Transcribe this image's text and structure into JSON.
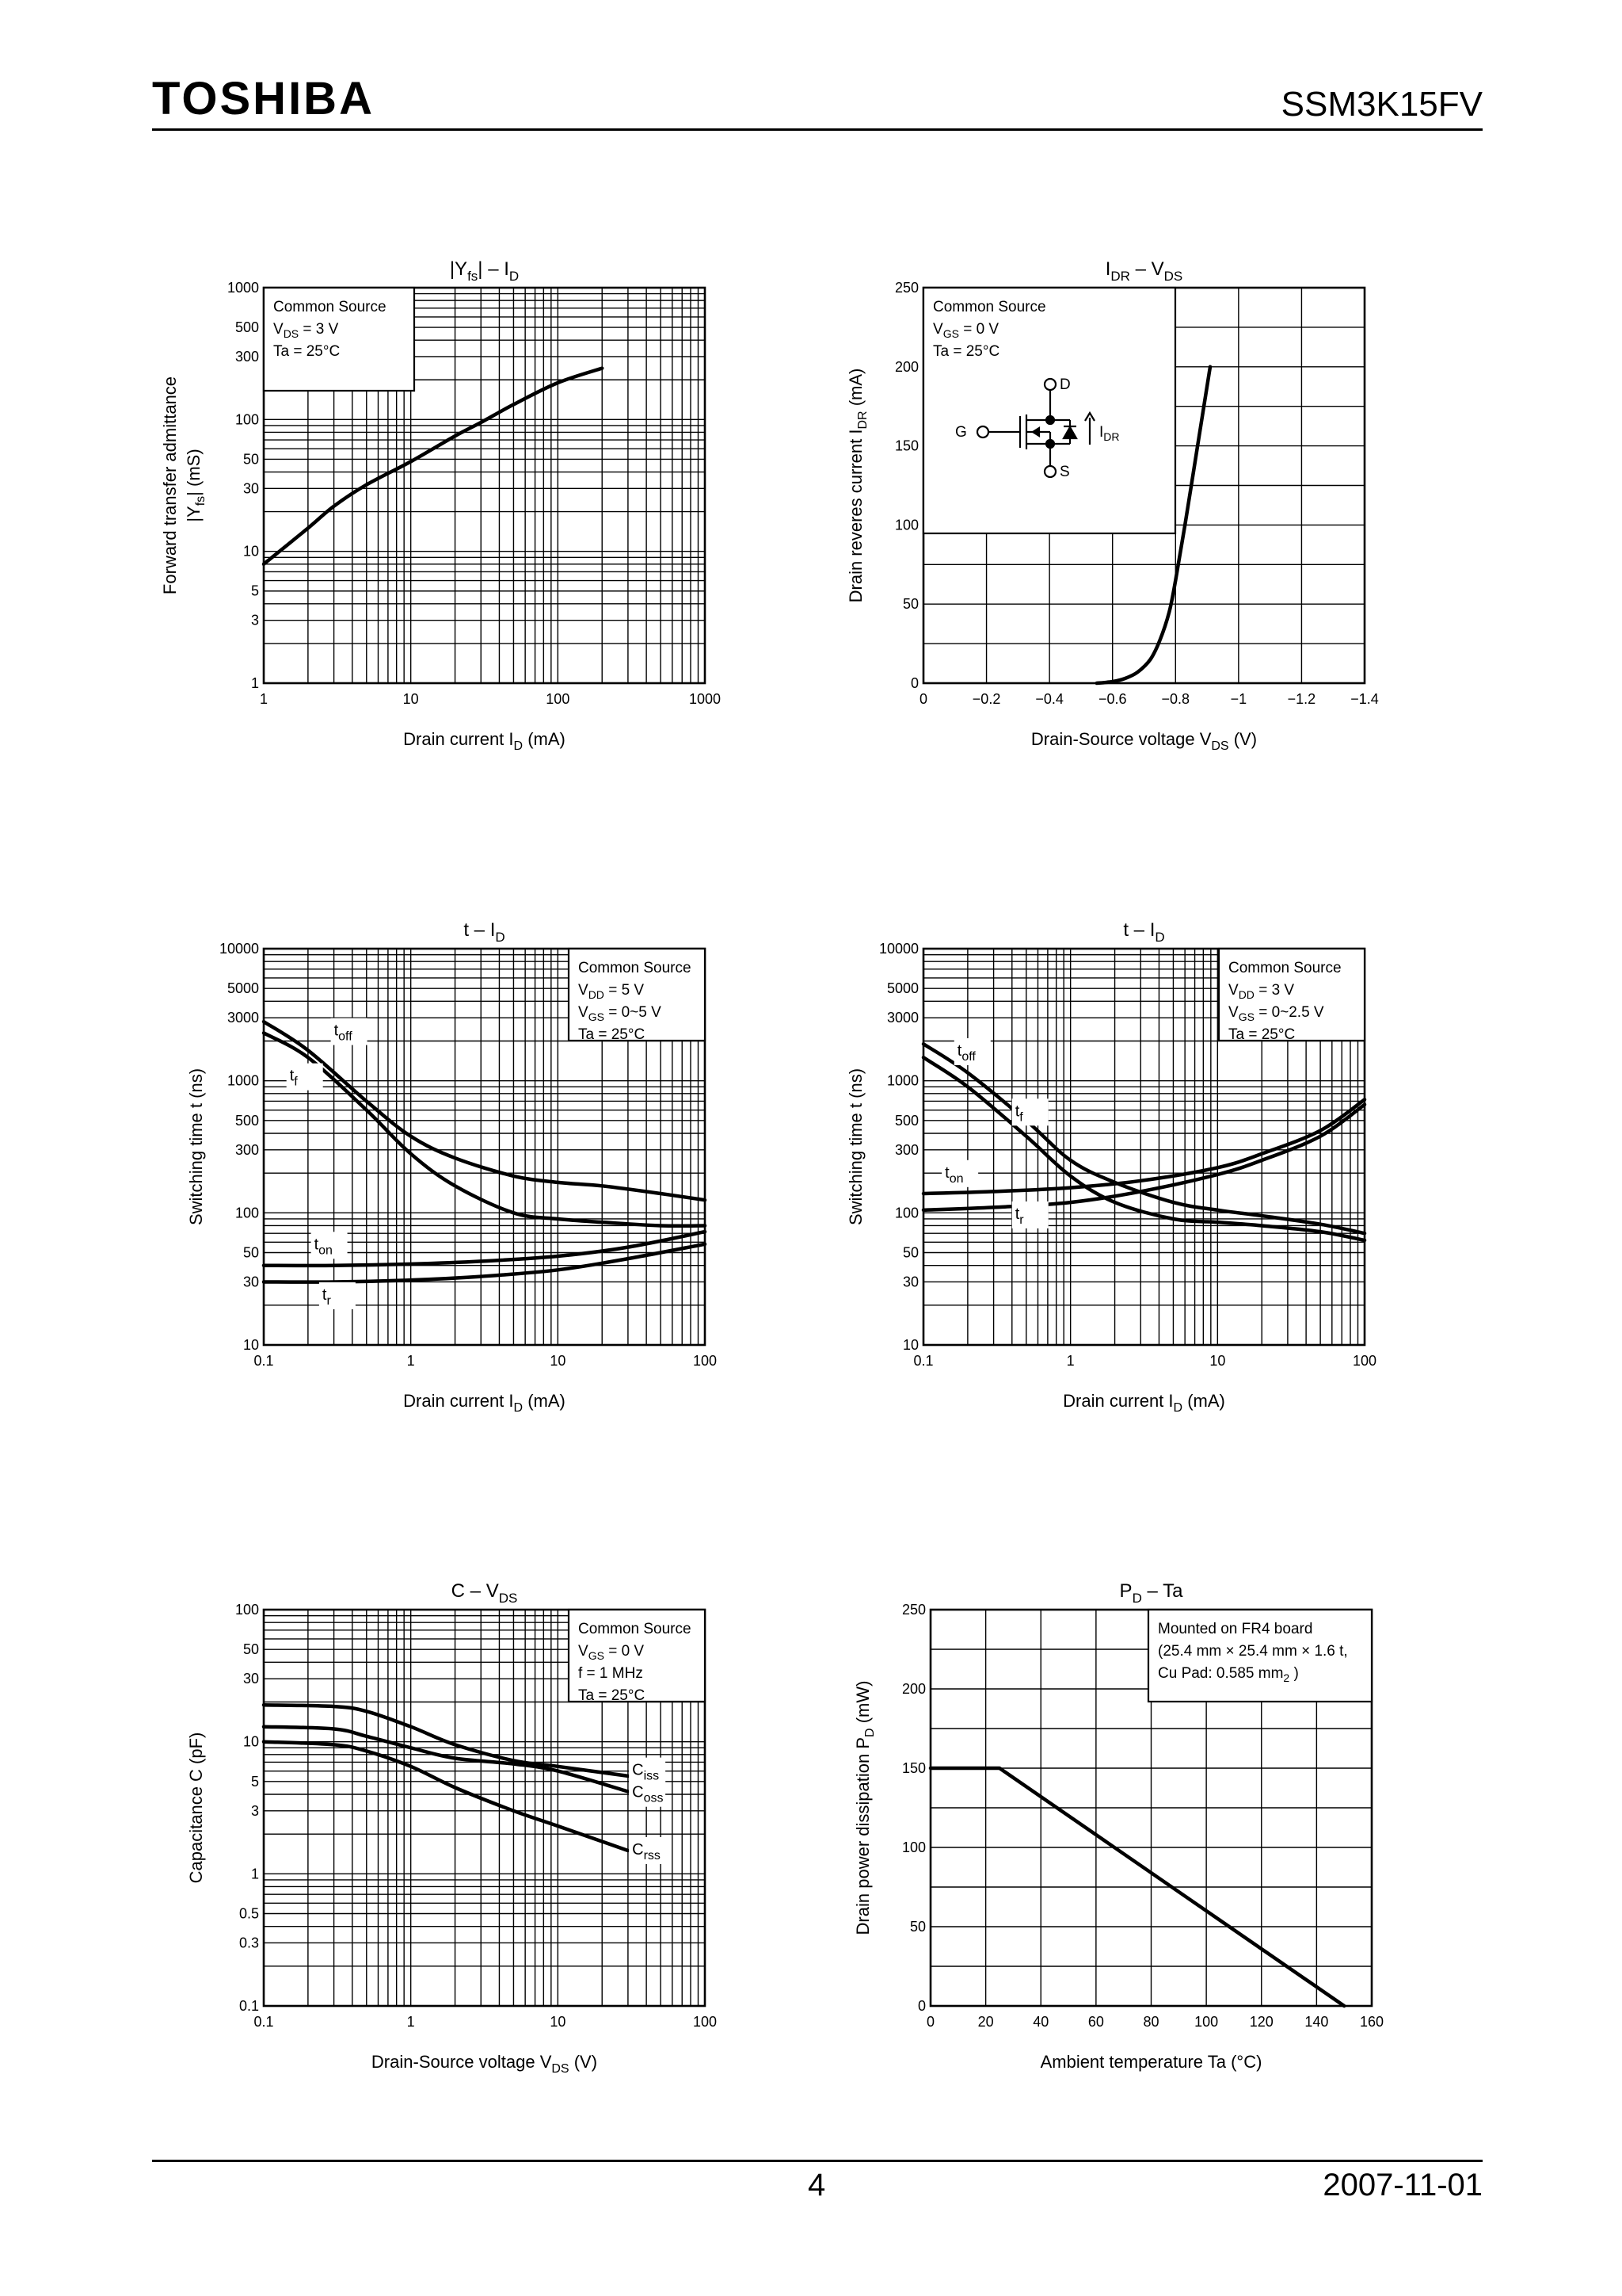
{
  "header": {
    "brand": "TOSHIBA",
    "part_number": "SSM3K15FV"
  },
  "footer": {
    "page": "4",
    "date": "2007-11-01"
  },
  "chart_data": [
    {
      "id": "yfs",
      "type": "line",
      "title": [
        "|Y",
        "fs",
        "| – I",
        "D",
        ""
      ],
      "xlabel": [
        "Drain current   I",
        "D",
        "   (mA)"
      ],
      "ylabel": [
        "Forward transfer admittance",
        "|Y",
        "fs",
        "|   (mS)"
      ],
      "xscale": "log",
      "yscale": "log",
      "xlim": [
        1,
        1000
      ],
      "ylim": [
        1,
        1000
      ],
      "xticks": [
        {
          "v": 1,
          "t": "1"
        },
        {
          "v": 10,
          "t": "10"
        },
        {
          "v": 100,
          "t": "100"
        },
        {
          "v": 1000,
          "t": "1000"
        }
      ],
      "yticks": [
        {
          "v": 1,
          "t": "1"
        },
        {
          "v": 3,
          "t": "3"
        },
        {
          "v": 5,
          "t": "5"
        },
        {
          "v": 10,
          "t": "10"
        },
        {
          "v": 30,
          "t": "30"
        },
        {
          "v": 50,
          "t": "50"
        },
        {
          "v": 100,
          "t": "100"
        },
        {
          "v": 300,
          "t": "300"
        },
        {
          "v": 500,
          "t": "500"
        },
        {
          "v": 1000,
          "t": "1000"
        }
      ],
      "grid": "log",
      "legend_box": {
        "position": "top-left",
        "lines": [
          [
            "Common Source"
          ],
          [
            "V",
            "DS",
            " = 3 V"
          ],
          [
            "Ta = 25°C"
          ]
        ]
      },
      "series": [
        {
          "name": "|Yfs|",
          "x": [
            1,
            2,
            3,
            5,
            10,
            20,
            30,
            50,
            100,
            200
          ],
          "y": [
            8,
            15,
            22,
            32,
            48,
            75,
            95,
            130,
            190,
            245
          ]
        }
      ],
      "labels": []
    },
    {
      "id": "idr",
      "type": "line",
      "title": [
        "I",
        "DR",
        " – V",
        "DS",
        ""
      ],
      "xlabel": [
        "Drain-Source voltage   V",
        "DS",
        "   (V)"
      ],
      "ylabel": [
        "Drain reveres current   I",
        "DR",
        "   (mA)"
      ],
      "xscale": "linear",
      "yscale": "linear",
      "xlim": [
        0,
        -1.4
      ],
      "ylim": [
        0,
        250
      ],
      "xticks": [
        {
          "v": 0,
          "t": "0"
        },
        {
          "v": -0.2,
          "t": "−0.2"
        },
        {
          "v": -0.4,
          "t": "−0.4"
        },
        {
          "v": -0.6,
          "t": "−0.6"
        },
        {
          "v": -0.8,
          "t": "−0.8"
        },
        {
          "v": -1,
          "t": "−1"
        },
        {
          "v": -1.2,
          "t": "−1.2"
        },
        {
          "v": -1.4,
          "t": "−1.4"
        }
      ],
      "yticks": [
        {
          "v": 0,
          "t": "0"
        },
        {
          "v": 50,
          "t": "50"
        },
        {
          "v": 100,
          "t": "100"
        },
        {
          "v": 150,
          "t": "150"
        },
        {
          "v": 200,
          "t": "200"
        },
        {
          "v": 250,
          "t": "250"
        }
      ],
      "grid": "linear",
      "grid_x": [
        0,
        -0.2,
        -0.4,
        -0.6,
        -0.8,
        -1,
        -1.2,
        -1.4
      ],
      "grid_y": [
        0,
        25,
        50,
        75,
        100,
        125,
        150,
        175,
        200,
        225,
        250
      ],
      "legend_box": {
        "position": "top-left",
        "lines": [
          [
            "Common Source"
          ],
          [
            "V",
            "GS",
            " = 0 V"
          ],
          [
            "Ta = 25°C"
          ]
        ],
        "symbol": {
          "D": "D",
          "G": "G",
          "S": "S",
          "current_main": "I",
          "current_sub": "DR"
        }
      },
      "series": [
        {
          "name": "IDR",
          "x": [
            -0.55,
            -0.6,
            -0.64,
            -0.68,
            -0.72,
            -0.75,
            -0.78,
            -0.8,
            -0.83,
            -0.87,
            -0.91
          ],
          "y": [
            0,
            1,
            3,
            7,
            15,
            27,
            45,
            65,
            100,
            150,
            200
          ]
        }
      ],
      "labels": []
    },
    {
      "id": "t5v",
      "type": "line",
      "title": [
        "t – I",
        "D",
        ""
      ],
      "xlabel": [
        "Drain current   I",
        "D",
        "   (mA)"
      ],
      "ylabel": [
        "Switching time   t   (ns)"
      ],
      "xscale": "log",
      "yscale": "log",
      "xlim": [
        0.1,
        100
      ],
      "ylim": [
        10,
        10000
      ],
      "xticks": [
        {
          "v": 0.1,
          "t": "0.1"
        },
        {
          "v": 1,
          "t": "1"
        },
        {
          "v": 10,
          "t": "10"
        },
        {
          "v": 100,
          "t": "100"
        }
      ],
      "yticks": [
        {
          "v": 10,
          "t": "10"
        },
        {
          "v": 30,
          "t": "30"
        },
        {
          "v": 50,
          "t": "50"
        },
        {
          "v": 100,
          "t": "100"
        },
        {
          "v": 300,
          "t": "300"
        },
        {
          "v": 500,
          "t": "500"
        },
        {
          "v": 1000,
          "t": "1000"
        },
        {
          "v": 3000,
          "t": "3000"
        },
        {
          "v": 5000,
          "t": "5000"
        },
        {
          "v": 10000,
          "t": "10000"
        }
      ],
      "grid": "log",
      "legend_box": {
        "position": "top-right",
        "lines": [
          [
            "Common Source"
          ],
          [
            "V",
            "DD",
            " = 5 V"
          ],
          [
            "V",
            "GS",
            " = 0~5 V"
          ],
          [
            "Ta = 25°C"
          ]
        ]
      },
      "series": [
        {
          "name": "toff",
          "x": [
            0.1,
            0.2,
            0.5,
            1,
            2,
            5,
            10,
            20,
            50,
            100
          ],
          "y": [
            2800,
            1700,
            700,
            380,
            260,
            190,
            170,
            160,
            140,
            125
          ]
        },
        {
          "name": "tf",
          "x": [
            0.1,
            0.2,
            0.5,
            1,
            2,
            5,
            10,
            20,
            50,
            100
          ],
          "y": [
            2300,
            1500,
            600,
            280,
            160,
            100,
            90,
            85,
            80,
            80
          ]
        },
        {
          "name": "ton",
          "x": [
            0.1,
            0.3,
            1,
            3,
            10,
            30,
            100
          ],
          "y": [
            40,
            40,
            41,
            43,
            47,
            55,
            72
          ]
        },
        {
          "name": "tr",
          "x": [
            0.1,
            0.3,
            1,
            3,
            10,
            30,
            100
          ],
          "y": [
            30,
            30,
            31,
            33,
            37,
            45,
            58
          ]
        }
      ],
      "labels": [
        {
          "main": "t",
          "sub": "off",
          "x": 0.3,
          "y": 2200
        },
        {
          "main": "t",
          "sub": "f",
          "x": 0.15,
          "y": 1000
        },
        {
          "main": "t",
          "sub": "on",
          "x": 0.22,
          "y": 53
        },
        {
          "main": "t",
          "sub": "r",
          "x": 0.25,
          "y": 22
        }
      ]
    },
    {
      "id": "t3v",
      "type": "line",
      "title": [
        "t – I",
        "D",
        ""
      ],
      "xlabel": [
        "Drain current   I",
        "D",
        "   (mA)"
      ],
      "ylabel": [
        "Switching time   t   (ns)"
      ],
      "xscale": "log",
      "yscale": "log",
      "xlim": [
        0.1,
        100
      ],
      "ylim": [
        10,
        10000
      ],
      "xticks": [
        {
          "v": 0.1,
          "t": "0.1"
        },
        {
          "v": 1,
          "t": "1"
        },
        {
          "v": 10,
          "t": "10"
        },
        {
          "v": 100,
          "t": "100"
        }
      ],
      "yticks": [
        {
          "v": 10,
          "t": "10"
        },
        {
          "v": 30,
          "t": "30"
        },
        {
          "v": 50,
          "t": "50"
        },
        {
          "v": 100,
          "t": "100"
        },
        {
          "v": 300,
          "t": "300"
        },
        {
          "v": 500,
          "t": "500"
        },
        {
          "v": 1000,
          "t": "1000"
        },
        {
          "v": 3000,
          "t": "3000"
        },
        {
          "v": 5000,
          "t": "5000"
        },
        {
          "v": 10000,
          "t": "10000"
        }
      ],
      "grid": "log",
      "legend_box": {
        "position": "top-right",
        "lines": [
          [
            "Common Source"
          ],
          [
            "V",
            "DD",
            " = 3 V"
          ],
          [
            "V",
            "GS",
            " = 0~2.5 V"
          ],
          [
            "Ta = 25°C"
          ]
        ]
      },
      "series": [
        {
          "name": "toff",
          "x": [
            0.1,
            0.2,
            0.5,
            1,
            2,
            5,
            10,
            20,
            50,
            100
          ],
          "y": [
            1900,
            1150,
            500,
            250,
            170,
            120,
            105,
            95,
            82,
            70
          ]
        },
        {
          "name": "tf",
          "x": [
            0.1,
            0.2,
            0.5,
            1,
            2,
            5,
            10,
            20,
            50,
            100
          ],
          "y": [
            1500,
            900,
            380,
            190,
            120,
            90,
            85,
            80,
            72,
            62
          ]
        },
        {
          "name": "ton",
          "x": [
            0.1,
            0.3,
            1,
            3,
            10,
            20,
            50,
            100
          ],
          "y": [
            140,
            145,
            155,
            175,
            220,
            280,
            420,
            720
          ]
        },
        {
          "name": "tr",
          "x": [
            0.1,
            0.3,
            1,
            3,
            10,
            20,
            50,
            100
          ],
          "y": [
            105,
            110,
            120,
            145,
            195,
            250,
            380,
            660
          ]
        }
      ],
      "labels": [
        {
          "main": "t",
          "sub": "off",
          "x": 0.17,
          "y": 1550
        },
        {
          "main": "t",
          "sub": "f",
          "x": 0.42,
          "y": 540
        },
        {
          "main": "t",
          "sub": "on",
          "x": 0.14,
          "y": 185
        },
        {
          "main": "t",
          "sub": "r",
          "x": 0.42,
          "y": 90
        }
      ]
    },
    {
      "id": "cvds",
      "type": "line",
      "title": [
        "C – V",
        "DS",
        ""
      ],
      "xlabel": [
        "Drain-Source voltage   V",
        "DS",
        "   (V)"
      ],
      "ylabel": [
        "Capacitance   C   (pF)"
      ],
      "xscale": "log",
      "yscale": "log",
      "xlim": [
        0.1,
        100
      ],
      "ylim": [
        0.1,
        100
      ],
      "xticks": [
        {
          "v": 0.1,
          "t": "0.1"
        },
        {
          "v": 1,
          "t": "1"
        },
        {
          "v": 10,
          "t": "10"
        },
        {
          "v": 100,
          "t": "100"
        }
      ],
      "yticks": [
        {
          "v": 0.1,
          "t": "0.1"
        },
        {
          "v": 0.3,
          "t": "0.3"
        },
        {
          "v": 0.5,
          "t": "0.5"
        },
        {
          "v": 1,
          "t": "1"
        },
        {
          "v": 3,
          "t": "3"
        },
        {
          "v": 5,
          "t": "5"
        },
        {
          "v": 10,
          "t": "10"
        },
        {
          "v": 30,
          "t": "30"
        },
        {
          "v": 50,
          "t": "50"
        },
        {
          "v": 100,
          "t": "100"
        }
      ],
      "grid": "log",
      "legend_box": {
        "position": "top-right",
        "lines": [
          [
            "Common Source"
          ],
          [
            "V",
            "GS",
            " = 0 V"
          ],
          [
            "f = 1 MHz"
          ],
          [
            "Ta = 25°C"
          ]
        ]
      },
      "series": [
        {
          "name": "Ciss",
          "x": [
            0.1,
            0.3,
            0.5,
            1,
            2,
            5,
            10,
            30
          ],
          "y": [
            19,
            18.5,
            17,
            13,
            9.5,
            7.2,
            6.5,
            5.5
          ]
        },
        {
          "name": "Coss",
          "x": [
            0.1,
            0.3,
            0.5,
            1,
            2,
            5,
            10,
            30
          ],
          "y": [
            13,
            12.5,
            11,
            9,
            7.5,
            6.8,
            6.0,
            4.2
          ]
        },
        {
          "name": "Crss",
          "x": [
            0.1,
            0.3,
            0.5,
            1,
            2,
            5,
            10,
            30
          ],
          "y": [
            10,
            9.5,
            8.5,
            6.5,
            4.5,
            3.0,
            2.3,
            1.5
          ]
        }
      ],
      "labels": [
        {
          "main": "C",
          "sub": "iss",
          "x": 32,
          "y": 5.6
        },
        {
          "main": "C",
          "sub": "oss",
          "x": 32,
          "y": 3.8
        },
        {
          "main": "C",
          "sub": "rss",
          "x": 32,
          "y": 1.4
        }
      ]
    },
    {
      "id": "pdta",
      "type": "line",
      "title": [
        "P",
        "D",
        " – Ta"
      ],
      "xlabel": [
        "Ambient temperature   Ta   (°C)"
      ],
      "ylabel": [
        "Drain power dissipation   P",
        "D",
        "   (mW)"
      ],
      "xscale": "linear",
      "yscale": "linear",
      "xlim": [
        0,
        160
      ],
      "ylim": [
        0,
        250
      ],
      "xticks": [
        {
          "v": 0,
          "t": "0"
        },
        {
          "v": 20,
          "t": "20"
        },
        {
          "v": 40,
          "t": "40"
        },
        {
          "v": 60,
          "t": "60"
        },
        {
          "v": 80,
          "t": "80"
        },
        {
          "v": 100,
          "t": "100"
        },
        {
          "v": 120,
          "t": "120"
        },
        {
          "v": 140,
          "t": "140"
        },
        {
          "v": 160,
          "t": "160"
        }
      ],
      "yticks": [
        {
          "v": 0,
          "t": "0"
        },
        {
          "v": 50,
          "t": "50"
        },
        {
          "v": 100,
          "t": "100"
        },
        {
          "v": 150,
          "t": "150"
        },
        {
          "v": 200,
          "t": "200"
        },
        {
          "v": 250,
          "t": "250"
        }
      ],
      "grid": "linear",
      "grid_x": [
        0,
        20,
        40,
        60,
        80,
        100,
        120,
        140,
        160
      ],
      "grid_y": [
        0,
        25,
        50,
        75,
        100,
        125,
        150,
        175,
        200,
        225,
        250
      ],
      "legend_box": {
        "position": "top-right",
        "lines": [
          [
            "Mounted on FR4 board"
          ],
          [
            "(25.4 mm × 25.4 mm × 1.6 t,"
          ],
          [
            "Cu Pad: 0.585 mm",
            "2",
            " )"
          ]
        ]
      },
      "series": [
        {
          "name": "PD",
          "x": [
            0,
            25,
            150
          ],
          "y": [
            150,
            150,
            0
          ]
        }
      ],
      "labels": []
    }
  ]
}
